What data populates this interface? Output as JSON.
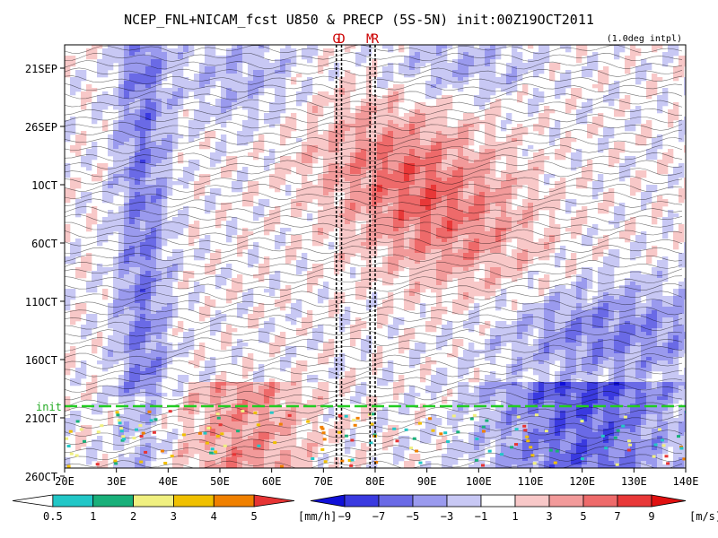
{
  "chart_data": {
    "type": "heatmap",
    "title": "NCEP_FNL+NICAM_fcst U850 & PRECP (5S-5N) init:00Z19OCT2011",
    "subtitle": "(1.0deg intpl)",
    "x_ticks": [
      "20E",
      "30E",
      "40E",
      "50E",
      "60E",
      "70E",
      "80E",
      "90E",
      "100E",
      "110E",
      "120E",
      "130E",
      "140E"
    ],
    "x_range": [
      20,
      140
    ],
    "y_ticks": [
      "21SEP",
      "26SEP",
      "1OCT",
      "6OCT",
      "11OCT",
      "16OCT",
      "21OCT",
      "26OCT"
    ],
    "y_range_days_labels": [
      "19SEP",
      "26OCT"
    ],
    "init_label": "init",
    "init_date": "19OCT",
    "markers": [
      {
        "label": "G",
        "lon": 72.5
      },
      {
        "label": "D",
        "lon": 73.5
      },
      {
        "label": "M",
        "lon": 79
      },
      {
        "label": "R",
        "lon": 80
      }
    ],
    "precip_colorbar": {
      "unit": "[mm/h]",
      "levels": [
        "0.5",
        "1",
        "2",
        "3",
        "4",
        "5"
      ],
      "colors": [
        "#ffffff",
        "#22c7c7",
        "#19b07a",
        "#f0f080",
        "#f0c000",
        "#f08000",
        "#e63434"
      ]
    },
    "wind_colorbar": {
      "unit": "[m/s]",
      "levels": [
        "−9",
        "−7",
        "−5",
        "−3",
        "−1",
        "1",
        "3",
        "5",
        "7",
        "9"
      ],
      "colors": [
        "#1010d8",
        "#3a3ae0",
        "#6a6ae6",
        "#9a9aee",
        "#c8c8f4",
        "#ffffff",
        "#f8c8c8",
        "#f29a9a",
        "#ee6a6a",
        "#e83838",
        "#e01010"
      ]
    }
  }
}
